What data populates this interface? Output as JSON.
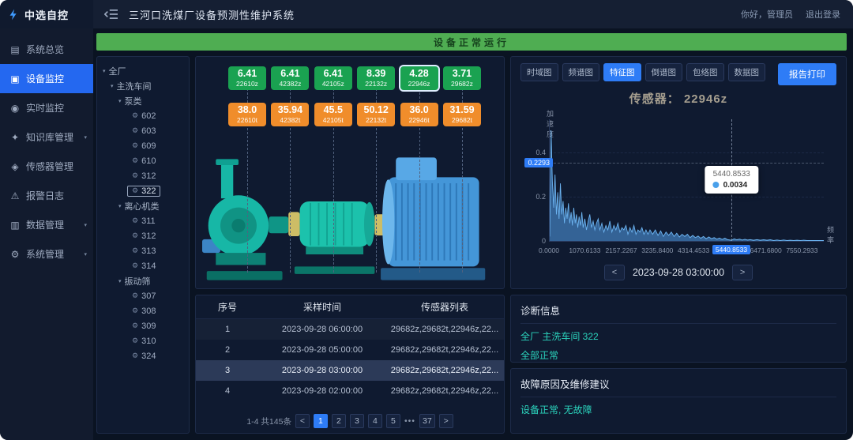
{
  "colors": {
    "accent_blue": "#2e7cf6",
    "badge_green": "#1aa251",
    "badge_orange": "#f08d2b",
    "banner_green": "#4fad52",
    "teal_text": "#2bd4bd",
    "chart_blue": "#5aaae8"
  },
  "topbar": {
    "logo_text": "中选自控",
    "app_title": "三河口洗煤厂设备预测性维护系统",
    "greeting": "你好，管理员",
    "logout_label": "退出登录"
  },
  "status_banner": {
    "text": "设备正常运行"
  },
  "sidebar": {
    "chevron": "▾",
    "items": [
      {
        "label": "系统总览",
        "icon": "▤"
      },
      {
        "label": "设备监控",
        "icon": "▣"
      },
      {
        "label": "实时监控",
        "icon": "◉"
      },
      {
        "label": "知识库管理",
        "icon": "✦"
      },
      {
        "label": "传感器管理",
        "icon": "◈"
      },
      {
        "label": "报警日志",
        "icon": "⚠"
      },
      {
        "label": "数据管理",
        "icon": "▥"
      },
      {
        "label": "系统管理",
        "icon": "⚙"
      }
    ]
  },
  "tree": {
    "caret": "▾",
    "leaf_icon": "⚙",
    "root_label": "全厂",
    "workshop_label": "主洗车间",
    "groups": [
      {
        "label": "泵类",
        "children": [
          "602",
          "603",
          "609",
          "610",
          "312",
          "322"
        ]
      },
      {
        "label": "离心机类",
        "children": [
          "311",
          "312",
          "313",
          "314"
        ]
      },
      {
        "label": "振动筛",
        "children": [
          "307",
          "308",
          "309",
          "310",
          "324"
        ]
      }
    ],
    "selected_leaf": "322"
  },
  "equipment": {
    "selected_sensor": "22946z",
    "green_badges": [
      {
        "value": "6.41",
        "label": "22610z"
      },
      {
        "value": "6.41",
        "label": "42382z"
      },
      {
        "value": "6.41",
        "label": "42105z"
      },
      {
        "value": "8.39",
        "label": "22132z"
      },
      {
        "value": "4.28",
        "label": "22946z"
      },
      {
        "value": "3.71",
        "label": "29682z"
      }
    ],
    "orange_badges": [
      {
        "value": "38.0",
        "label": "22610t"
      },
      {
        "value": "35.94",
        "label": "42382t"
      },
      {
        "value": "45.5",
        "label": "42105t"
      },
      {
        "value": "50.12",
        "label": "22132t"
      },
      {
        "value": "36.0",
        "label": "22946t"
      },
      {
        "value": "31.59",
        "label": "29682t"
      }
    ]
  },
  "sample_table": {
    "headers": [
      "序号",
      "采样时间",
      "传感器列表"
    ],
    "rows": [
      {
        "no": "1",
        "time": "2023-09-28 06:00:00",
        "sensors": "29682z,29682t,22946z,22..."
      },
      {
        "no": "2",
        "time": "2023-09-28 05:00:00",
        "sensors": "29682z,29682t,22946z,22..."
      },
      {
        "no": "3",
        "time": "2023-09-28 03:00:00",
        "sensors": "29682z,29682t,22946z,22..."
      },
      {
        "no": "4",
        "time": "2023-09-28 02:00:00",
        "sensors": "29682z,29682t,22946z,22..."
      }
    ],
    "selected_row_no": "3",
    "pagination": {
      "summary": "1-4 共145条",
      "prev": "<",
      "pages": [
        "1",
        "2",
        "3",
        "4",
        "5"
      ],
      "active_page": "1",
      "ellipsis": "•••",
      "last_page": "37",
      "next": ">"
    }
  },
  "chart_panel": {
    "tabs": [
      "时域图",
      "频谱图",
      "特征图",
      "倒谱图",
      "包络图",
      "数据图"
    ],
    "active_tab": "特征图",
    "print_button": "报告打印",
    "sensor_title": "传感器： 22946z",
    "y_axis_badge": "0.2293",
    "tooltip": {
      "x": "5440.8533",
      "value": "0.0034"
    },
    "date_nav": {
      "prev": "<",
      "date": "2023-09-28 03:00:00",
      "next": ">"
    }
  },
  "chart_data": {
    "type": "area",
    "title": "传感器： 22946z",
    "ylabel": "加速度",
    "xlabel": "频率",
    "legend": [],
    "grid": true,
    "y_ticks": [
      "0",
      "0.2",
      "0.4"
    ],
    "ylim": [
      0,
      0.55
    ],
    "xlim": [
      0,
      8200
    ],
    "x_ticks": [
      "0.0000",
      "1070.6133",
      "2157.2267",
      "3235.8400",
      "4314.4533",
      "5440.8533",
      "6471.6800",
      "7550.2933"
    ],
    "x_tick_values": [
      0,
      1070.6133,
      2157.2267,
      3235.84,
      4314.4533,
      5440.8533,
      6471.68,
      7550.2933
    ],
    "highlighted_tick_index": 5,
    "crosshair_x": 5440.8533,
    "marked_point": {
      "x": 5440.8533,
      "y": 0.0034
    },
    "points": [
      [
        0,
        0.02
      ],
      [
        40,
        0.5
      ],
      [
        80,
        0.27
      ],
      [
        120,
        0.15
      ],
      [
        160,
        0.3
      ],
      [
        200,
        0.12
      ],
      [
        240,
        0.22
      ],
      [
        280,
        0.1
      ],
      [
        320,
        0.26
      ],
      [
        360,
        0.12
      ],
      [
        400,
        0.18
      ],
      [
        440,
        0.08
      ],
      [
        480,
        0.15
      ],
      [
        520,
        0.1
      ],
      [
        560,
        0.17
      ],
      [
        600,
        0.08
      ],
      [
        640,
        0.13
      ],
      [
        680,
        0.07
      ],
      [
        720,
        0.15
      ],
      [
        760,
        0.08
      ],
      [
        800,
        0.12
      ],
      [
        840,
        0.06
      ],
      [
        880,
        0.11
      ],
      [
        920,
        0.07
      ],
      [
        960,
        0.13
      ],
      [
        1000,
        0.06
      ],
      [
        1050,
        0.1
      ],
      [
        1100,
        0.05
      ],
      [
        1150,
        0.09
      ],
      [
        1200,
        0.12
      ],
      [
        1250,
        0.06
      ],
      [
        1300,
        0.09
      ],
      [
        1350,
        0.05
      ],
      [
        1400,
        0.08
      ],
      [
        1450,
        0.1
      ],
      [
        1500,
        0.05
      ],
      [
        1560,
        0.08
      ],
      [
        1620,
        0.04
      ],
      [
        1680,
        0.07
      ],
      [
        1740,
        0.05
      ],
      [
        1800,
        0.09
      ],
      [
        1860,
        0.04
      ],
      [
        1920,
        0.07
      ],
      [
        1980,
        0.05
      ],
      [
        2040,
        0.08
      ],
      [
        2100,
        0.04
      ],
      [
        2160,
        0.06
      ],
      [
        2220,
        0.05
      ],
      [
        2280,
        0.07
      ],
      [
        2340,
        0.03
      ],
      [
        2400,
        0.06
      ],
      [
        2460,
        0.04
      ],
      [
        2520,
        0.07
      ],
      [
        2580,
        0.03
      ],
      [
        2640,
        0.05
      ],
      [
        2700,
        0.04
      ],
      [
        2760,
        0.06
      ],
      [
        2820,
        0.03
      ],
      [
        2880,
        0.05
      ],
      [
        2940,
        0.03
      ],
      [
        3000,
        0.05
      ],
      [
        3080,
        0.03
      ],
      [
        3160,
        0.05
      ],
      [
        3240,
        0.025
      ],
      [
        3320,
        0.045
      ],
      [
        3400,
        0.02
      ],
      [
        3480,
        0.04
      ],
      [
        3560,
        0.025
      ],
      [
        3640,
        0.04
      ],
      [
        3720,
        0.02
      ],
      [
        3800,
        0.035
      ],
      [
        3880,
        0.018
      ],
      [
        3960,
        0.03
      ],
      [
        4040,
        0.02
      ],
      [
        4120,
        0.03
      ],
      [
        4200,
        0.015
      ],
      [
        4280,
        0.025
      ],
      [
        4360,
        0.015
      ],
      [
        4440,
        0.022
      ],
      [
        4520,
        0.012
      ],
      [
        4600,
        0.02
      ],
      [
        4680,
        0.01
      ],
      [
        4760,
        0.018
      ],
      [
        4840,
        0.01
      ],
      [
        4920,
        0.015
      ],
      [
        5000,
        0.008
      ],
      [
        5080,
        0.013
      ],
      [
        5160,
        0.007
      ],
      [
        5240,
        0.012
      ],
      [
        5320,
        0.006
      ],
      [
        5440,
        0.0034
      ],
      [
        5520,
        0.009
      ],
      [
        5600,
        0.005
      ],
      [
        5680,
        0.008
      ],
      [
        5760,
        0.004
      ],
      [
        5840,
        0.007
      ],
      [
        5920,
        0.004
      ],
      [
        6000,
        0.006
      ],
      [
        6100,
        0.003
      ],
      [
        6200,
        0.006
      ],
      [
        6300,
        0.003
      ],
      [
        6400,
        0.005
      ],
      [
        6500,
        0.003
      ],
      [
        6600,
        0.005
      ],
      [
        6700,
        0.002
      ],
      [
        6800,
        0.004
      ],
      [
        6900,
        0.002
      ],
      [
        7000,
        0.004
      ],
      [
        7100,
        0.002
      ],
      [
        7200,
        0.003
      ],
      [
        7300,
        0.002
      ],
      [
        7400,
        0.003
      ],
      [
        7500,
        0.002
      ],
      [
        7600,
        0.003
      ],
      [
        7700,
        0.002
      ],
      [
        7800,
        0.002
      ],
      [
        7900,
        0.002
      ],
      [
        8000,
        0.002
      ],
      [
        8100,
        0.002
      ],
      [
        8200,
        0.002
      ]
    ]
  },
  "diagnosis": {
    "title": "诊断信息",
    "location_link": "全厂 主洗车间 322",
    "status_link": "全部正常"
  },
  "fault": {
    "title": "故障原因及维修建议",
    "text": "设备正常, 无故障"
  }
}
